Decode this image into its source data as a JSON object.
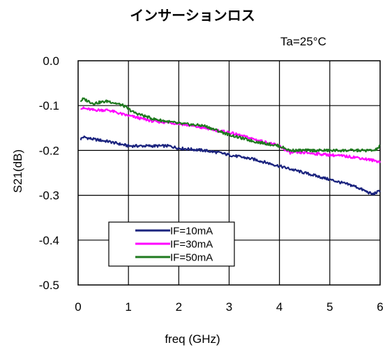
{
  "chart_data": {
    "type": "line",
    "title": "インサーションロス",
    "annotation": "Ta=25°C",
    "xlabel": "freq (GHz)",
    "ylabel": "S21(dB)",
    "xlim": [
      0,
      6
    ],
    "ylim": [
      -0.5,
      0.0
    ],
    "xticks": [
      0,
      1,
      2,
      3,
      4,
      5,
      6
    ],
    "yticks": [
      0.0,
      -0.1,
      -0.2,
      -0.3,
      -0.4,
      -0.5
    ],
    "yticklabels": [
      "0.0",
      "-0.1",
      "-0.2",
      "-0.3",
      "-0.4",
      "-0.5"
    ],
    "grid": true,
    "legend_position": "bottom-left",
    "series": [
      {
        "name": "IF=10mA",
        "color": "#1a237e",
        "points": [
          [
            0.05,
            -0.175
          ],
          [
            0.1,
            -0.17
          ],
          [
            0.3,
            -0.175
          ],
          [
            0.6,
            -0.18
          ],
          [
            1.0,
            -0.19
          ],
          [
            1.5,
            -0.19
          ],
          [
            1.8,
            -0.19
          ],
          [
            2.0,
            -0.195
          ],
          [
            2.5,
            -0.2
          ],
          [
            2.8,
            -0.205
          ],
          [
            3.0,
            -0.21
          ],
          [
            3.5,
            -0.22
          ],
          [
            4.0,
            -0.235
          ],
          [
            4.5,
            -0.25
          ],
          [
            5.0,
            -0.265
          ],
          [
            5.5,
            -0.28
          ],
          [
            5.85,
            -0.298
          ],
          [
            6.0,
            -0.29
          ]
        ]
      },
      {
        "name": "IF=30mA",
        "color": "#ff00ff",
        "points": [
          [
            0.05,
            -0.105
          ],
          [
            0.3,
            -0.11
          ],
          [
            0.6,
            -0.11
          ],
          [
            0.9,
            -0.12
          ],
          [
            1.1,
            -0.125
          ],
          [
            1.5,
            -0.135
          ],
          [
            2.0,
            -0.14
          ],
          [
            2.5,
            -0.15
          ],
          [
            3.0,
            -0.16
          ],
          [
            3.5,
            -0.175
          ],
          [
            4.0,
            -0.19
          ],
          [
            4.2,
            -0.205
          ],
          [
            4.5,
            -0.205
          ],
          [
            5.0,
            -0.21
          ],
          [
            5.5,
            -0.215
          ],
          [
            6.0,
            -0.225
          ]
        ]
      },
      {
        "name": "IF=50mA",
        "color": "#1f7a1f",
        "points": [
          [
            0.05,
            -0.09
          ],
          [
            0.1,
            -0.085
          ],
          [
            0.3,
            -0.095
          ],
          [
            0.6,
            -0.09
          ],
          [
            0.9,
            -0.1
          ],
          [
            1.1,
            -0.115
          ],
          [
            1.5,
            -0.13
          ],
          [
            2.0,
            -0.14
          ],
          [
            2.5,
            -0.145
          ],
          [
            3.0,
            -0.165
          ],
          [
            3.5,
            -0.18
          ],
          [
            4.0,
            -0.19
          ],
          [
            4.2,
            -0.2
          ],
          [
            4.5,
            -0.2
          ],
          [
            5.0,
            -0.2
          ],
          [
            5.5,
            -0.2
          ],
          [
            5.9,
            -0.2
          ],
          [
            6.0,
            -0.19
          ]
        ]
      }
    ]
  }
}
